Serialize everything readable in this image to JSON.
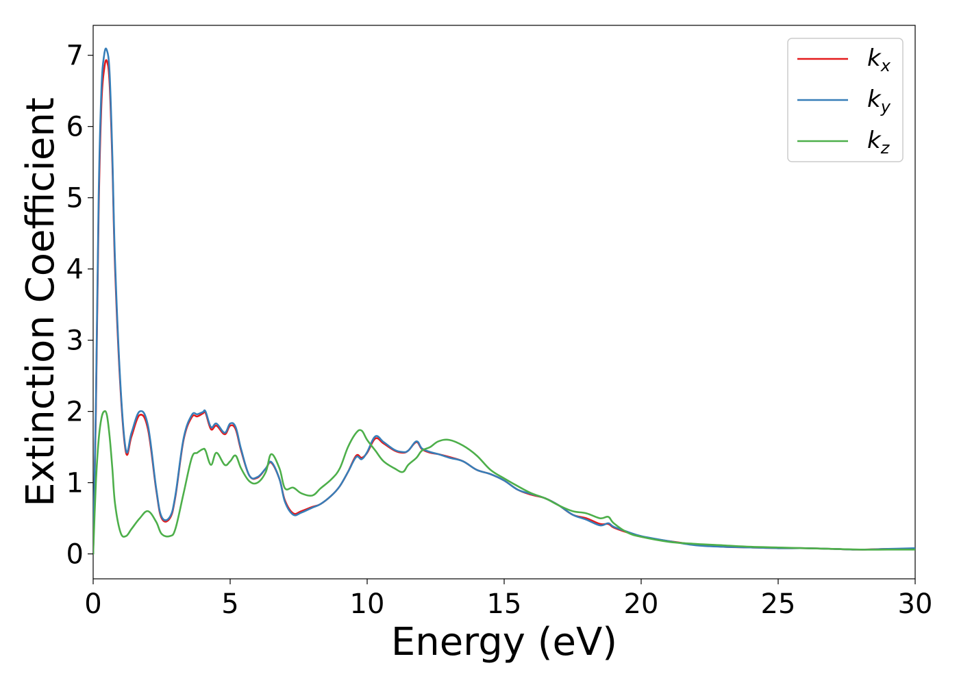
{
  "chart_data": {
    "type": "line",
    "title": "",
    "xlabel": "Energy (eV)",
    "ylabel": "Extinction Coefficient",
    "xlim": [
      0,
      30
    ],
    "ylim": [
      -0.35,
      7.42
    ],
    "xticks": [
      0,
      5,
      10,
      15,
      20,
      25,
      30
    ],
    "yticks": [
      0,
      1,
      2,
      3,
      4,
      5,
      6,
      7
    ],
    "grid": false,
    "legend_position": "top-right",
    "series": [
      {
        "name": "k_x",
        "label_base": "k",
        "label_sub": "x",
        "color": "#e41a1c",
        "x": [
          0,
          0.1,
          0.2,
          0.3,
          0.4,
          0.5,
          0.6,
          0.7,
          0.8,
          1.0,
          1.2,
          1.4,
          1.7,
          2.0,
          2.3,
          2.5,
          2.8,
          3.0,
          3.3,
          3.6,
          3.8,
          4.0,
          4.1,
          4.3,
          4.5,
          4.8,
          5.0,
          5.2,
          5.4,
          5.7,
          6.0,
          6.3,
          6.5,
          6.8,
          7.0,
          7.3,
          7.6,
          8.0,
          8.3,
          8.7,
          9.0,
          9.3,
          9.6,
          9.8,
          10.0,
          10.3,
          10.6,
          11.0,
          11.3,
          11.5,
          11.8,
          12.0,
          12.3,
          12.6,
          13.0,
          13.5,
          14.0,
          14.5,
          15.0,
          15.5,
          16.0,
          16.5,
          17.0,
          17.5,
          18.0,
          18.5,
          18.8,
          19.0,
          19.5,
          20.0,
          21.0,
          22.0,
          23.0,
          24.0,
          25.0,
          26.0,
          27.0,
          28.0,
          29.0,
          30.0
        ],
        "y": [
          0.0,
          2.0,
          4.8,
          6.3,
          6.8,
          6.92,
          6.6,
          5.5,
          4.0,
          2.3,
          1.42,
          1.65,
          1.95,
          1.75,
          0.9,
          0.5,
          0.5,
          0.8,
          1.6,
          1.92,
          1.93,
          1.97,
          1.98,
          1.75,
          1.8,
          1.68,
          1.8,
          1.75,
          1.45,
          1.1,
          1.07,
          1.2,
          1.28,
          1.05,
          0.75,
          0.57,
          0.6,
          0.66,
          0.7,
          0.82,
          0.95,
          1.15,
          1.38,
          1.35,
          1.42,
          1.62,
          1.55,
          1.45,
          1.42,
          1.45,
          1.57,
          1.47,
          1.42,
          1.4,
          1.36,
          1.3,
          1.18,
          1.12,
          1.03,
          0.9,
          0.83,
          0.78,
          0.68,
          0.55,
          0.5,
          0.42,
          0.42,
          0.37,
          0.3,
          0.24,
          0.18,
          0.13,
          0.1,
          0.09,
          0.08,
          0.08,
          0.07,
          0.06,
          0.07,
          0.07
        ]
      },
      {
        "name": "k_y",
        "label_base": "k",
        "label_sub": "y",
        "color": "#377eb8",
        "x": [
          0,
          0.1,
          0.2,
          0.3,
          0.4,
          0.5,
          0.6,
          0.7,
          0.8,
          1.0,
          1.2,
          1.4,
          1.7,
          2.0,
          2.3,
          2.5,
          2.8,
          3.0,
          3.3,
          3.6,
          3.8,
          4.0,
          4.1,
          4.3,
          4.5,
          4.8,
          5.0,
          5.2,
          5.4,
          5.7,
          6.0,
          6.3,
          6.5,
          6.8,
          7.0,
          7.3,
          7.6,
          8.0,
          8.3,
          8.7,
          9.0,
          9.3,
          9.6,
          9.8,
          10.0,
          10.3,
          10.6,
          11.0,
          11.3,
          11.5,
          11.8,
          12.0,
          12.3,
          12.6,
          13.0,
          13.5,
          14.0,
          14.5,
          15.0,
          15.5,
          16.0,
          16.5,
          17.0,
          17.5,
          18.0,
          18.5,
          18.8,
          19.0,
          19.5,
          20.0,
          21.0,
          22.0,
          23.0,
          24.0,
          25.0,
          26.0,
          27.0,
          28.0,
          29.0,
          30.0
        ],
        "y": [
          0.0,
          2.1,
          5.0,
          6.5,
          7.0,
          7.07,
          6.75,
          5.6,
          4.1,
          2.35,
          1.45,
          1.7,
          2.0,
          1.8,
          0.92,
          0.52,
          0.52,
          0.82,
          1.62,
          1.95,
          1.96,
          1.99,
          2.0,
          1.78,
          1.83,
          1.7,
          1.83,
          1.78,
          1.47,
          1.1,
          1.08,
          1.2,
          1.29,
          1.05,
          0.73,
          0.55,
          0.58,
          0.65,
          0.7,
          0.82,
          0.95,
          1.15,
          1.36,
          1.33,
          1.43,
          1.65,
          1.57,
          1.46,
          1.43,
          1.45,
          1.58,
          1.48,
          1.43,
          1.4,
          1.35,
          1.3,
          1.18,
          1.12,
          1.03,
          0.9,
          0.84,
          0.78,
          0.68,
          0.55,
          0.48,
          0.4,
          0.43,
          0.38,
          0.31,
          0.25,
          0.18,
          0.12,
          0.1,
          0.09,
          0.08,
          0.08,
          0.07,
          0.06,
          0.07,
          0.08
        ]
      },
      {
        "name": "k_z",
        "label_base": "k",
        "label_sub": "z",
        "color": "#4daf4a",
        "x": [
          0,
          0.1,
          0.2,
          0.3,
          0.4,
          0.5,
          0.6,
          0.7,
          0.8,
          1.0,
          1.2,
          1.4,
          1.7,
          2.0,
          2.3,
          2.5,
          2.8,
          3.0,
          3.3,
          3.6,
          3.8,
          4.0,
          4.1,
          4.3,
          4.5,
          4.8,
          5.0,
          5.2,
          5.4,
          5.7,
          6.0,
          6.3,
          6.5,
          6.8,
          7.0,
          7.3,
          7.6,
          8.0,
          8.3,
          8.7,
          9.0,
          9.3,
          9.6,
          9.8,
          10.0,
          10.3,
          10.6,
          11.0,
          11.3,
          11.5,
          11.8,
          12.0,
          12.3,
          12.6,
          13.0,
          13.5,
          14.0,
          14.5,
          15.0,
          15.5,
          16.0,
          16.5,
          17.0,
          17.5,
          18.0,
          18.5,
          18.8,
          19.0,
          19.5,
          20.0,
          21.0,
          22.0,
          23.0,
          24.0,
          25.0,
          26.0,
          27.0,
          28.0,
          29.0,
          30.0
        ],
        "y": [
          0.0,
          1.0,
          1.6,
          1.9,
          2.0,
          1.95,
          1.65,
          1.2,
          0.7,
          0.3,
          0.25,
          0.35,
          0.5,
          0.6,
          0.45,
          0.28,
          0.25,
          0.35,
          0.85,
          1.35,
          1.42,
          1.47,
          1.45,
          1.25,
          1.42,
          1.25,
          1.3,
          1.38,
          1.2,
          1.02,
          1.0,
          1.15,
          1.4,
          1.2,
          0.92,
          0.93,
          0.85,
          0.82,
          0.92,
          1.05,
          1.2,
          1.5,
          1.7,
          1.73,
          1.6,
          1.45,
          1.3,
          1.2,
          1.15,
          1.25,
          1.35,
          1.45,
          1.5,
          1.58,
          1.6,
          1.52,
          1.38,
          1.18,
          1.06,
          0.95,
          0.85,
          0.78,
          0.68,
          0.6,
          0.57,
          0.5,
          0.52,
          0.43,
          0.3,
          0.24,
          0.17,
          0.14,
          0.12,
          0.1,
          0.09,
          0.08,
          0.07,
          0.06,
          0.06,
          0.06
        ]
      }
    ]
  }
}
